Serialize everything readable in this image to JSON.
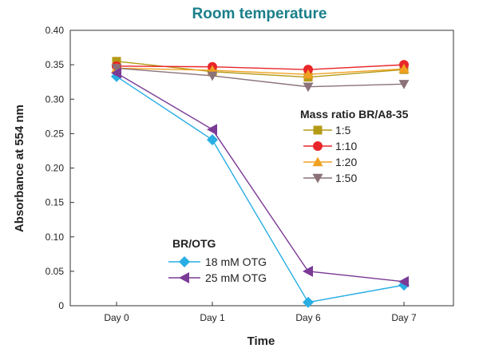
{
  "chart_data": {
    "type": "line",
    "title": "Room temperature",
    "xlabel": "Time",
    "ylabel": "Absorbance at 554 nm",
    "categories": [
      "Day 0",
      "Day 1",
      "Day 6",
      "Day 7"
    ],
    "ylim": [
      0,
      0.4
    ],
    "yticks": [
      "0",
      "0.05",
      "0.10",
      "0.15",
      "0.20",
      "0.25",
      "0.30",
      "0.35",
      "0.40"
    ],
    "ytick_values": [
      0,
      0.05,
      0.1,
      0.15,
      0.2,
      0.25,
      0.3,
      0.35,
      0.4
    ],
    "grid": false,
    "title_color": "#1a7f8a",
    "legends": [
      {
        "title": "Mass ratio BR/A8-35",
        "placement": "right-middle",
        "entries": [
          "1:5",
          "1:10",
          "1:20",
          "1:50"
        ]
      },
      {
        "title": "BR/OTG",
        "placement": "bottom-left",
        "entries": [
          "18 mM OTG",
          "25 mM OTG"
        ]
      }
    ],
    "series": [
      {
        "name": "1:5",
        "marker": "square",
        "color": "#b59a16",
        "values": [
          0.355,
          0.34,
          0.332,
          0.343
        ]
      },
      {
        "name": "1:10",
        "marker": "circle",
        "color": "#e8262a",
        "values": [
          0.348,
          0.347,
          0.343,
          0.35
        ]
      },
      {
        "name": "1:20",
        "marker": "triangle-up",
        "color": "#f0a020",
        "values": [
          0.345,
          0.342,
          0.336,
          0.344
        ]
      },
      {
        "name": "1:50",
        "marker": "triangle-down",
        "color": "#8a7278",
        "values": [
          0.345,
          0.334,
          0.318,
          0.322
        ]
      },
      {
        "name": "18 mM OTG",
        "marker": "diamond",
        "color": "#29aee4",
        "values": [
          0.333,
          0.241,
          0.005,
          0.03
        ]
      },
      {
        "name": "25 mM OTG",
        "marker": "triangle-left",
        "color": "#7a3a96",
        "values": [
          0.338,
          0.256,
          0.05,
          0.035
        ]
      }
    ]
  }
}
